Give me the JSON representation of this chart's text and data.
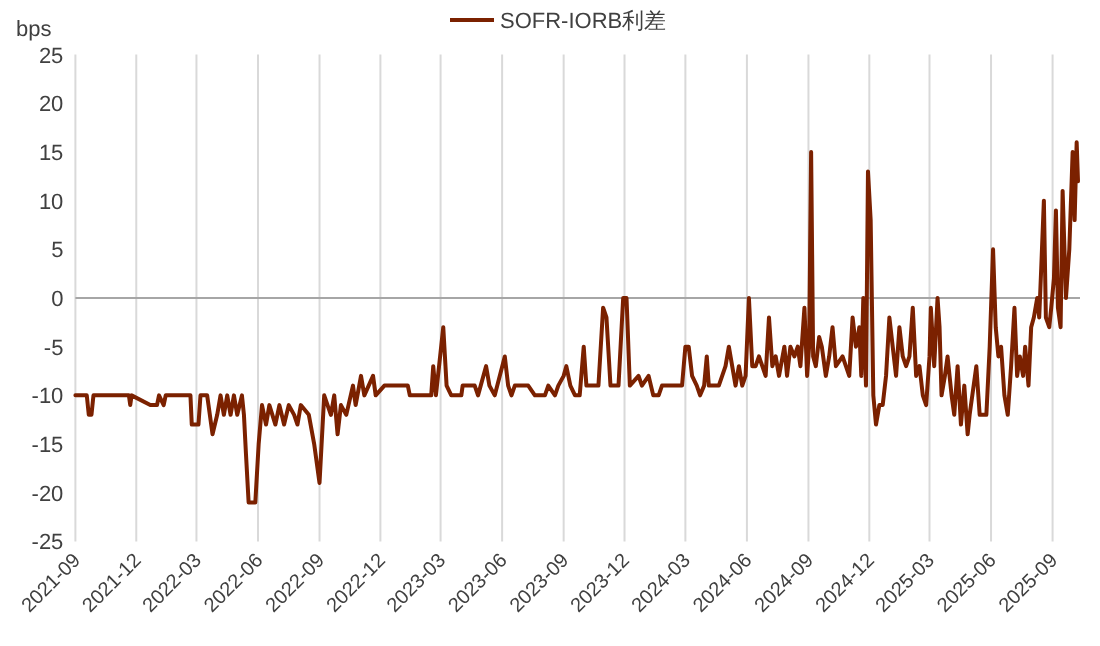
{
  "chart_data": {
    "type": "line",
    "ylabel": "bps",
    "legend": "top",
    "grid": "x",
    "marker": "none",
    "line_style": "solid",
    "xlim": [
      "2021-09-01",
      "2025-10-12"
    ],
    "ylim": [
      -25,
      25
    ],
    "yticks": [
      -25,
      -20,
      -15,
      -10,
      -5,
      0,
      5,
      10,
      15,
      20,
      25
    ],
    "xticks": [
      "2021-09",
      "2021-12",
      "2022-03",
      "2022-06",
      "2022-09",
      "2022-12",
      "2023-03",
      "2023-06",
      "2023-09",
      "2023-12",
      "2024-03",
      "2024-06",
      "2024-09",
      "2024-12",
      "2025-03",
      "2025-06",
      "2025-09"
    ],
    "x": [
      "2021-09-01",
      "2021-09-18",
      "2021-09-21",
      "2021-09-25",
      "2021-09-28",
      "2021-11-20",
      "2021-11-22",
      "2021-11-24",
      "2021-12-22",
      "2022-01-01",
      "2022-01-04",
      "2022-01-11",
      "2022-01-14",
      "2022-02-20",
      "2022-02-22",
      "2022-03-04",
      "2022-03-07",
      "2022-03-17",
      "2022-03-19",
      "2022-03-25",
      "2022-04-01",
      "2022-04-06",
      "2022-04-11",
      "2022-04-16",
      "2022-04-21",
      "2022-04-26",
      "2022-05-01",
      "2022-05-08",
      "2022-05-11",
      "2022-05-14",
      "2022-05-18",
      "2022-05-28",
      "2022-06-02",
      "2022-06-07",
      "2022-06-13",
      "2022-06-18",
      "2022-06-27",
      "2022-07-03",
      "2022-07-10",
      "2022-07-17",
      "2022-07-25",
      "2022-07-30",
      "2022-08-04",
      "2022-08-16",
      "2022-08-24",
      "2022-09-01",
      "2022-09-08",
      "2022-09-18",
      "2022-09-23",
      "2022-09-28",
      "2022-10-03",
      "2022-10-11",
      "2022-10-21",
      "2022-10-25",
      "2022-11-02",
      "2022-11-07",
      "2022-11-20",
      "2022-11-24",
      "2022-12-07",
      "2023-01-11",
      "2023-01-14",
      "2023-02-15",
      "2023-02-18",
      "2023-02-22",
      "2023-03-05",
      "2023-03-10",
      "2023-03-17",
      "2023-04-01",
      "2023-04-03",
      "2023-04-21",
      "2023-04-26",
      "2023-05-08",
      "2023-05-13",
      "2023-05-21",
      "2023-06-05",
      "2023-06-10",
      "2023-06-15",
      "2023-06-20",
      "2023-07-10",
      "2023-07-20",
      "2023-08-04",
      "2023-08-09",
      "2023-08-19",
      "2023-08-24",
      "2023-09-01",
      "2023-09-05",
      "2023-09-11",
      "2023-09-18",
      "2023-09-25",
      "2023-10-01",
      "2023-10-05",
      "2023-10-23",
      "2023-10-30",
      "2023-11-04",
      "2023-11-10",
      "2023-11-22",
      "2023-11-29",
      "2023-12-04",
      "2023-12-09",
      "2023-12-22",
      "2023-12-27",
      "2024-01-06",
      "2024-01-13",
      "2024-01-21",
      "2024-01-26",
      "2024-02-25",
      "2024-03-01",
      "2024-03-06",
      "2024-03-11",
      "2024-03-18",
      "2024-03-23",
      "2024-03-29",
      "2024-04-02",
      "2024-04-05",
      "2024-04-20",
      "2024-04-30",
      "2024-05-05",
      "2024-05-10",
      "2024-05-15",
      "2024-05-20",
      "2024-05-25",
      "2024-05-30",
      "2024-06-04",
      "2024-06-09",
      "2024-06-14",
      "2024-06-19",
      "2024-06-29",
      "2024-07-04",
      "2024-07-09",
      "2024-07-14",
      "2024-07-19",
      "2024-07-27",
      "2024-07-31",
      "2024-08-05",
      "2024-08-11",
      "2024-08-16",
      "2024-08-20",
      "2024-08-26",
      "2024-08-30",
      "2024-09-02",
      "2024-09-05",
      "2024-09-08",
      "2024-09-12",
      "2024-09-17",
      "2024-09-21",
      "2024-09-27",
      "2024-10-02",
      "2024-10-07",
      "2024-10-12",
      "2024-10-22",
      "2024-10-27",
      "2024-11-01",
      "2024-11-06",
      "2024-11-11",
      "2024-11-14",
      "2024-11-16",
      "2024-11-19",
      "2024-11-22",
      "2024-11-26",
      "2024-11-29",
      "2024-12-03",
      "2024-12-07",
      "2024-12-11",
      "2024-12-16",
      "2024-12-21",
      "2024-12-26",
      "2024-12-31",
      "2025-01-05",
      "2025-01-10",
      "2025-01-15",
      "2025-01-20",
      "2025-01-25",
      "2025-01-30",
      "2025-02-04",
      "2025-02-09",
      "2025-02-14",
      "2025-02-19",
      "2025-02-24",
      "2025-03-01",
      "2025-03-03",
      "2025-03-08",
      "2025-03-13",
      "2025-03-16",
      "2025-03-19",
      "2025-03-24",
      "2025-03-28",
      "2025-04-03",
      "2025-04-07",
      "2025-04-12",
      "2025-04-17",
      "2025-04-22",
      "2025-04-27",
      "2025-04-30",
      "2025-05-10",
      "2025-05-15",
      "2025-05-25",
      "2025-05-30",
      "2025-06-04",
      "2025-06-08",
      "2025-06-12",
      "2025-06-16",
      "2025-06-21",
      "2025-06-26",
      "2025-07-01",
      "2025-07-06",
      "2025-07-10",
      "2025-07-14",
      "2025-07-19",
      "2025-07-22",
      "2025-07-27",
      "2025-07-31",
      "2025-08-04",
      "2025-08-09",
      "2025-08-12",
      "2025-08-15",
      "2025-08-19",
      "2025-08-22",
      "2025-08-27",
      "2025-08-30",
      "2025-09-03",
      "2025-09-06",
      "2025-09-09",
      "2025-09-13",
      "2025-09-16",
      "2025-09-21",
      "2025-09-26",
      "2025-10-01",
      "2025-10-04",
      "2025-10-07",
      "2025-10-09"
    ],
    "series": [
      {
        "name": "SOFR-IORB利差",
        "color": "#7b2100",
        "values": [
          -10,
          -10,
          -12,
          -12,
          -10,
          -10,
          -11,
          -10,
          -11,
          -11,
          -10,
          -11,
          -10,
          -10,
          -13,
          -13,
          -10,
          -10,
          -11,
          -14,
          -12,
          -10,
          -12,
          -10,
          -12,
          -10,
          -12,
          -10,
          -12,
          -16,
          -21,
          -21,
          -15,
          -11,
          -13,
          -11,
          -13,
          -11,
          -13,
          -11,
          -12,
          -13,
          -11,
          -12,
          -15,
          -19,
          -10,
          -12,
          -10,
          -14,
          -11,
          -12,
          -9,
          -11,
          -8,
          -10,
          -8,
          -10,
          -9,
          -9,
          -10,
          -10,
          -7,
          -10,
          -3,
          -9,
          -10,
          -10,
          -9,
          -9,
          -10,
          -7,
          -9,
          -10,
          -6,
          -9,
          -10,
          -9,
          -9,
          -10,
          -10,
          -9,
          -10,
          -9,
          -8,
          -7,
          -9,
          -10,
          -10,
          -5,
          -9,
          -9,
          -1,
          -2,
          -9,
          -9,
          0,
          0,
          -9,
          -8,
          -9,
          -8,
          -10,
          -10,
          -9,
          -9,
          -5,
          -5,
          -8,
          -9,
          -10,
          -9,
          -6,
          -9,
          -9,
          -7,
          -5,
          -7,
          -9,
          -7,
          -9,
          -8,
          0,
          -7,
          -7,
          -6,
          -8,
          -2,
          -7,
          -6,
          -8,
          -5,
          -8,
          -5,
          -6,
          -5,
          -7,
          -1,
          -8,
          -5,
          15,
          -6,
          -7,
          -4,
          -5,
          -8,
          -6,
          -3,
          -7,
          -6,
          -7,
          -8,
          -2,
          -5,
          -4,
          -3,
          -8,
          0,
          -9,
          13,
          8,
          -10,
          -13,
          -11,
          -11,
          -8,
          -2,
          -5,
          -8,
          -3,
          -6,
          -7,
          -6,
          -1,
          -8,
          -7,
          -10,
          -11,
          -6,
          -1,
          -7,
          0,
          -3,
          -10,
          -8,
          -6,
          -10,
          -12,
          -7,
          -13,
          -9,
          -14,
          -12,
          -7,
          -12,
          -12,
          -5,
          5,
          -3,
          -6,
          -5,
          -10,
          -12,
          -7,
          -1,
          -8,
          -6,
          -8,
          -5,
          -9,
          -3,
          -2,
          0,
          -2,
          3,
          10,
          -2,
          -3,
          -1,
          2,
          9,
          -1,
          -3,
          11,
          0,
          5,
          15,
          8,
          16,
          12
        ]
      }
    ]
  }
}
